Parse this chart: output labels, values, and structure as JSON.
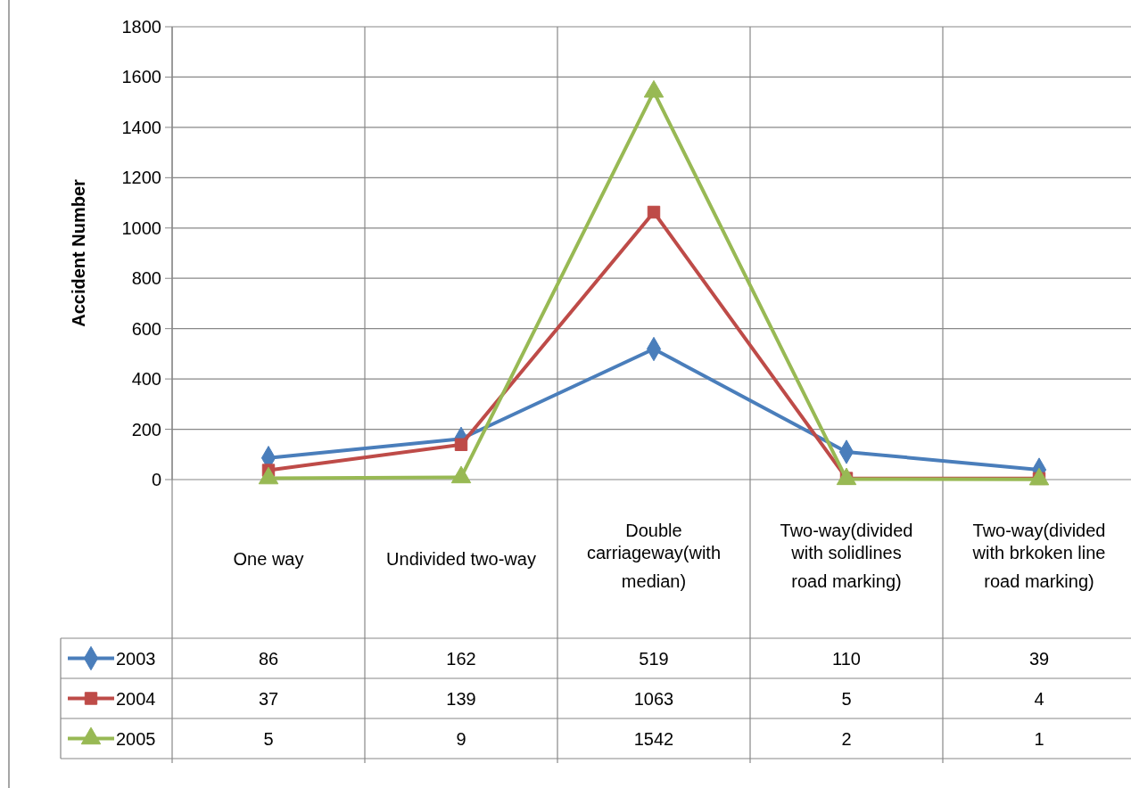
{
  "chart_data": {
    "type": "line",
    "ylabel": "Accident Number",
    "categories": [
      "One way",
      "Undivided two-way",
      "Double carriageway(with median)",
      "Two-way(divided with solidlines road marking)",
      "Two-way(divided with brkoken line road marking)"
    ],
    "series": [
      {
        "name": "2003",
        "color": "#4a7ebb",
        "marker": "diamond",
        "values": [
          86,
          162,
          519,
          110,
          39
        ]
      },
      {
        "name": "2004",
        "color": "#be4b48",
        "marker": "square",
        "values": [
          37,
          139,
          1063,
          5,
          4
        ]
      },
      {
        "name": "2005",
        "color": "#98b954",
        "marker": "triangle",
        "values": [
          5,
          9,
          1542,
          2,
          1
        ]
      }
    ],
    "ylim": [
      0,
      1800
    ],
    "yticks": [
      0,
      200,
      400,
      600,
      800,
      1000,
      1200,
      1400,
      1600,
      1800
    ],
    "grid": "y",
    "legend": "bottom",
    "data_labels": true
  }
}
